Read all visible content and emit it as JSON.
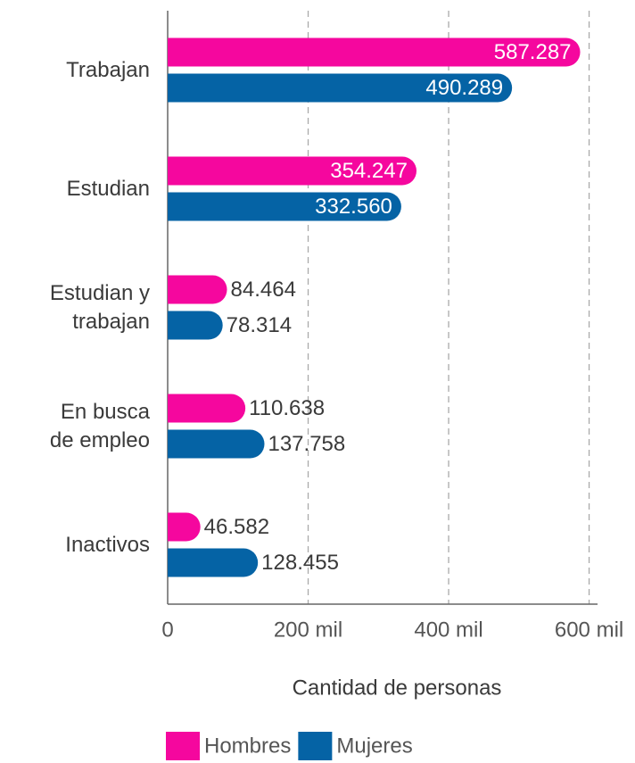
{
  "chart_data": {
    "type": "bar",
    "orientation": "horizontal",
    "categories": [
      "Trabajan",
      "Estudian",
      "Estudian y\ntrabajan",
      "En busca\nde empleo",
      "Inactivos"
    ],
    "series": [
      {
        "name": "Hombres",
        "color": "#f5079e",
        "values": [
          587287,
          354247,
          84464,
          110638,
          46582
        ],
        "value_labels": [
          "587.287",
          "354.247",
          "84.464",
          "110.638",
          "46.582"
        ]
      },
      {
        "name": "Mujeres",
        "color": "#0563a5",
        "values": [
          490289,
          332560,
          78314,
          137758,
          128455
        ],
        "value_labels": [
          "490.289",
          "332.560",
          "78.314",
          "137.758",
          "128.455"
        ]
      }
    ],
    "xlim": [
      0,
      612000
    ],
    "xticks": [
      0,
      {
        "value": 200000,
        "label": "200 mil"
      },
      {
        "value": 400000,
        "label": "400 mil"
      },
      {
        "value": 600000,
        "label": "600 mil"
      }
    ],
    "xlabel": "Cantidad de personas",
    "grid": true,
    "legend": "bottom"
  }
}
